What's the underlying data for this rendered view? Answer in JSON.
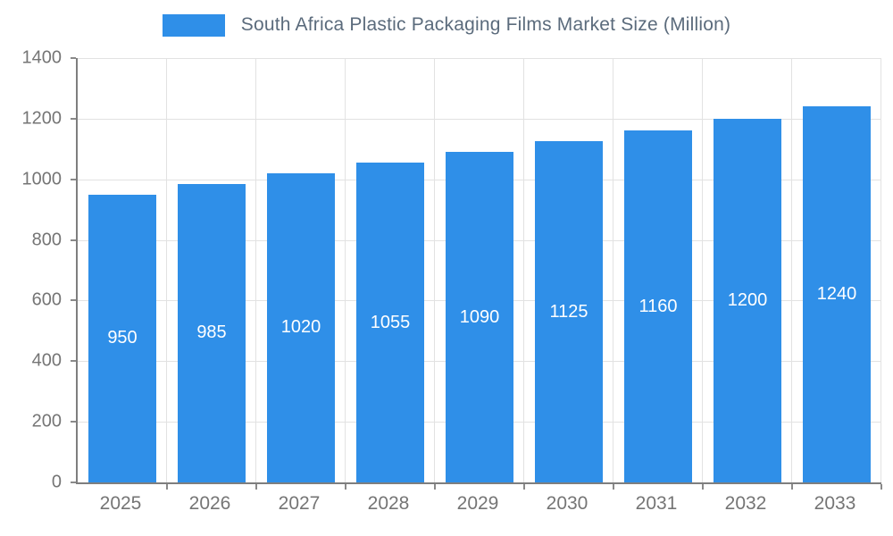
{
  "chart_data": {
    "type": "bar",
    "title": "South Africa Plastic Packaging Films Market Size (Million)",
    "categories": [
      "2025",
      "2026",
      "2027",
      "2028",
      "2029",
      "2030",
      "2031",
      "2032",
      "2033"
    ],
    "values": [
      950,
      985,
      1020,
      1055,
      1090,
      1125,
      1160,
      1200,
      1240
    ],
    "xlabel": "",
    "ylabel": "",
    "ylim": [
      0,
      1400
    ],
    "ytick_interval": 200,
    "yticks": [
      0,
      200,
      400,
      600,
      800,
      1000,
      1200,
      1400
    ],
    "grid": true,
    "legend_position": "top",
    "colors": {
      "bar": "#2F8FE8",
      "bar_label": "#ffffff",
      "title_text": "#5b6b7c",
      "axis_text": "#757575",
      "axis_line": "#7e7e7e",
      "gridline": "#e2e2e2",
      "background": "#ffffff"
    }
  }
}
